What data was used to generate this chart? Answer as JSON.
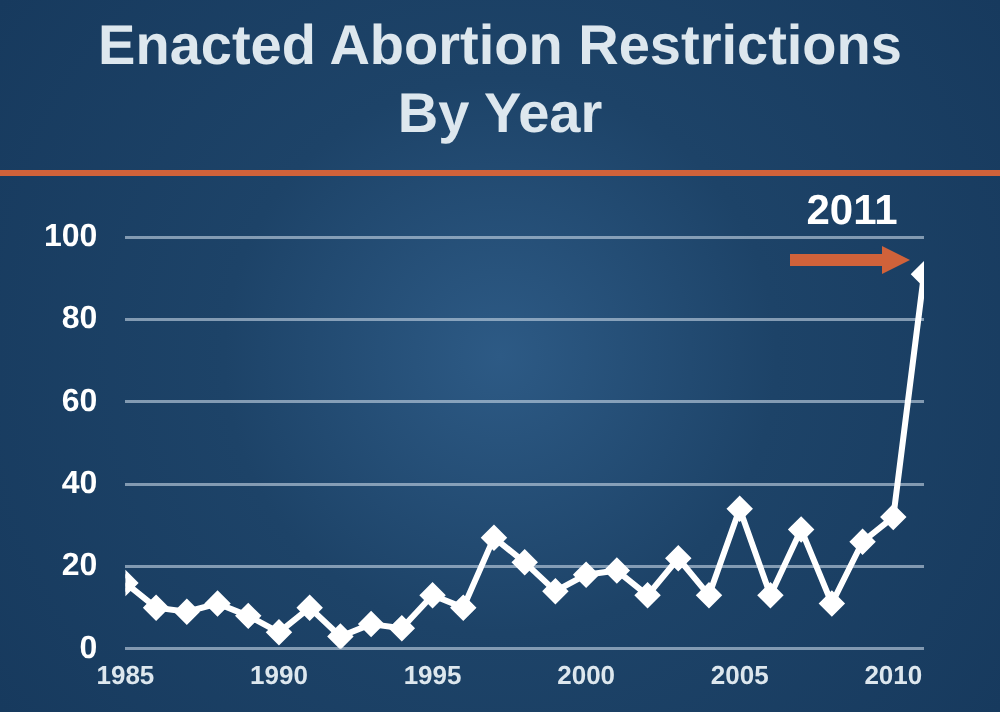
{
  "chart_data": {
    "type": "line",
    "title": "Enacted Abortion Restrictions\nBy Year",
    "x": [
      1985,
      1986,
      1987,
      1988,
      1989,
      1990,
      1991,
      1992,
      1993,
      1994,
      1995,
      1996,
      1997,
      1998,
      1999,
      2000,
      2001,
      2002,
      2003,
      2004,
      2005,
      2006,
      2007,
      2008,
      2009,
      2010,
      2011
    ],
    "series": [
      {
        "color": "#ffffff",
        "values": [
          16,
          10,
          9,
          11,
          8,
          4,
          10,
          3,
          6,
          5,
          13,
          10,
          27,
          21,
          14,
          18,
          19,
          13,
          22,
          13,
          34,
          13,
          29,
          11,
          26,
          32,
          91
        ]
      }
    ],
    "xlim": [
      1985,
      2011
    ],
    "xticks": [
      1985,
      1990,
      1995,
      2000,
      2005,
      2010
    ],
    "ylim": [
      0,
      100
    ],
    "yticks": [
      0,
      20,
      40,
      60,
      80,
      100
    ],
    "grid": "y",
    "marker": "diamond",
    "legend": false,
    "annotations": [
      {
        "text": "2011",
        "x": 2011,
        "y": 91
      }
    ]
  }
}
